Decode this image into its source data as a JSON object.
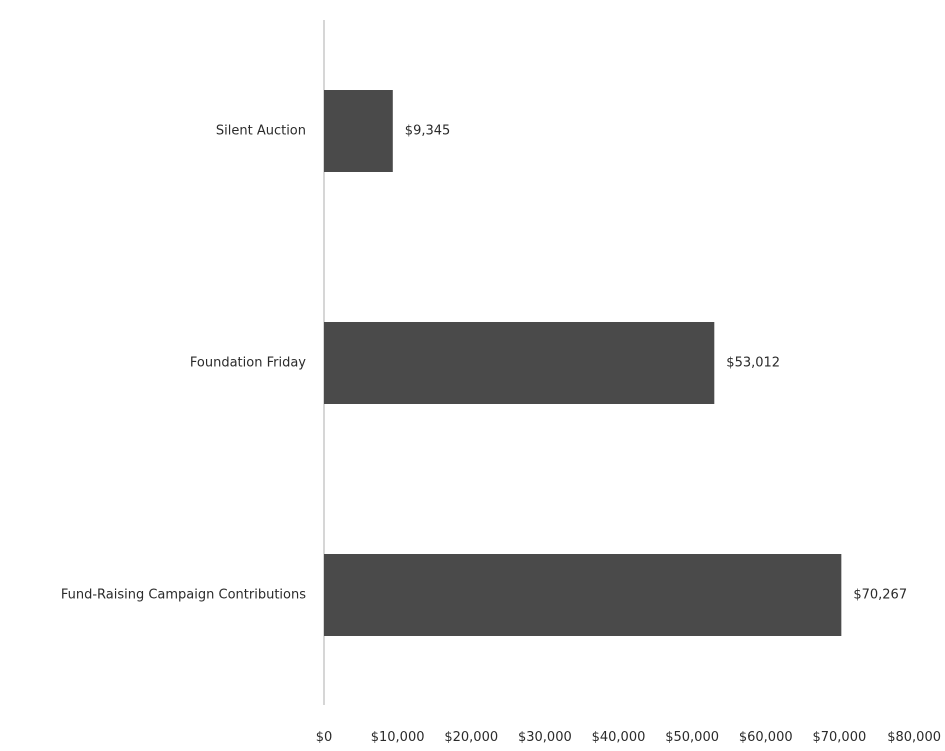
{
  "chart_data": {
    "type": "bar",
    "orientation": "horizontal",
    "categories": [
      "Silent Auction",
      "Foundation Friday",
      "Fund-Raising Campaign Contributions"
    ],
    "values": [
      9345,
      53012,
      70267
    ],
    "data_labels": [
      "$9,345",
      "$53,012",
      "$70,267"
    ],
    "x_ticks": [
      "$0",
      "$10,000",
      "$20,000",
      "$30,000",
      "$40,000",
      "$50,000",
      "$60,000",
      "$70,000",
      "$80,000"
    ],
    "xlim": [
      0,
      80000
    ],
    "grid": false,
    "legend": "none",
    "colors": {
      "bar": "#4a4a4a",
      "axis": "#c8c8c8",
      "text": "#2b2b2b"
    }
  }
}
